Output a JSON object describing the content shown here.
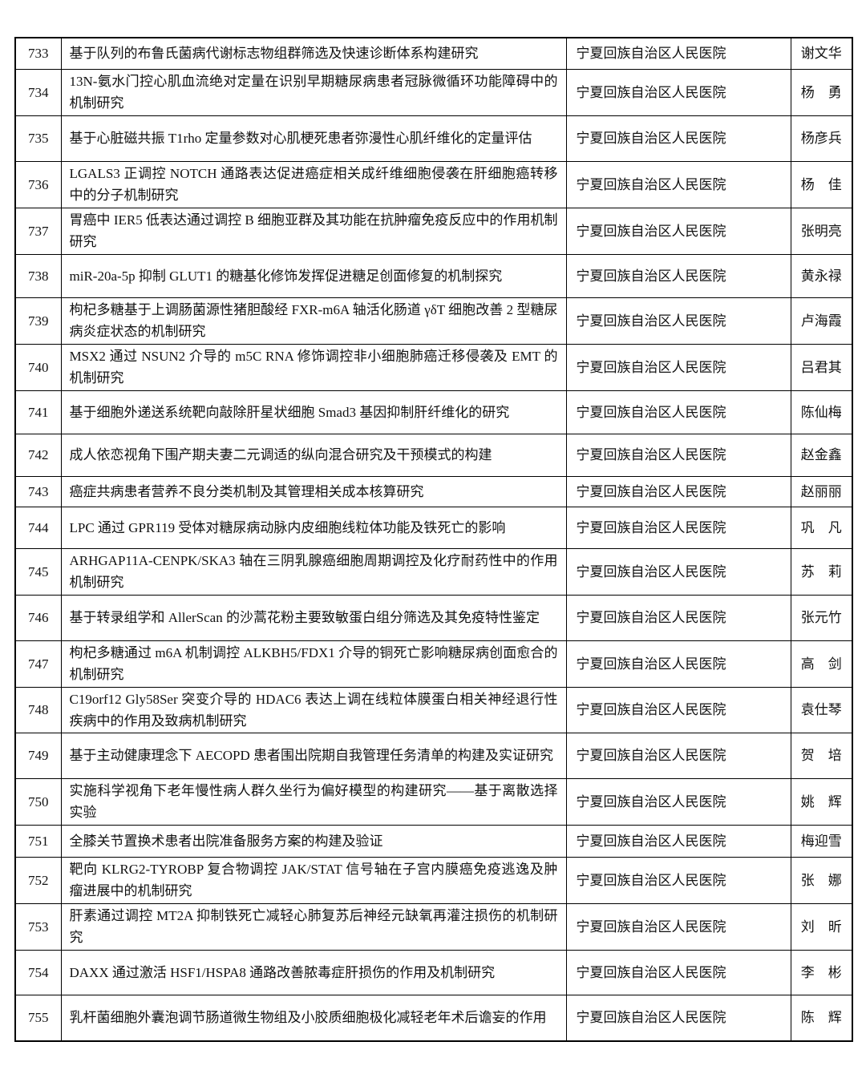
{
  "table": {
    "rows": [
      [
        "733",
        "基于队列的布鲁氏菌病代谢标志物组群筛选及快速诊断体系构建研究",
        "宁夏回族自治区人民医院",
        "谢文华"
      ],
      [
        "734",
        "13N-氨水门控心肌血流绝对定量在识别早期糖尿病患者冠脉微循环功能障碍中的机制研究",
        "宁夏回族自治区人民医院",
        "杨　勇"
      ],
      [
        "735",
        "基于心脏磁共振 T1rho 定量参数对心肌梗死患者弥漫性心肌纤维化的定量评估",
        "宁夏回族自治区人民医院",
        "杨彦兵"
      ],
      [
        "736",
        "LGALS3 正调控 NOTCH 通路表达促进癌症相关成纤维细胞侵袭在肝细胞癌转移中的分子机制研究",
        "宁夏回族自治区人民医院",
        "杨　佳"
      ],
      [
        "737",
        "胃癌中 IER5 低表达通过调控 B 细胞亚群及其功能在抗肿瘤免疫反应中的作用机制研究",
        "宁夏回族自治区人民医院",
        "张明亮"
      ],
      [
        "738",
        "miR-20a-5p 抑制 GLUT1 的糖基化修饰发挥促进糖足创面修复的机制探究",
        "宁夏回族自治区人民医院",
        "黄永禄"
      ],
      [
        "739",
        "枸杞多糖基于上调肠菌源性猪胆酸经 FXR-m6A 轴活化肠道 γδT 细胞改善 2 型糖尿病炎症状态的机制研究",
        "宁夏回族自治区人民医院",
        "卢海霞"
      ],
      [
        "740",
        "MSX2 通过 NSUN2 介导的 m5C RNA 修饰调控非小细胞肺癌迁移侵袭及 EMT 的机制研究",
        "宁夏回族自治区人民医院",
        "吕君其"
      ],
      [
        "741",
        "基于细胞外递送系统靶向敲除肝星状细胞 Smad3 基因抑制肝纤维化的研究",
        "宁夏回族自治区人民医院",
        "陈仙梅"
      ],
      [
        "742",
        "成人依恋视角下围产期夫妻二元调适的纵向混合研究及干预模式的构建",
        "宁夏回族自治区人民医院",
        "赵金鑫"
      ],
      [
        "743",
        "癌症共病患者营养不良分类机制及其管理相关成本核算研究",
        "宁夏回族自治区人民医院",
        "赵丽丽"
      ],
      [
        "744",
        "LPC 通过 GPR119 受体对糖尿病动脉内皮细胞线粒体功能及铁死亡的影响",
        "宁夏回族自治区人民医院",
        "巩　凡"
      ],
      [
        "745",
        "ARHGAP11A-CENPK/SKA3 轴在三阴乳腺癌细胞周期调控及化疗耐药性中的作用机制研究",
        "宁夏回族自治区人民医院",
        "苏　莉"
      ],
      [
        "746",
        "基于转录组学和 AllerScan 的沙蒿花粉主要致敏蛋白组分筛选及其免疫特性鉴定",
        "宁夏回族自治区人民医院",
        "张元竹"
      ],
      [
        "747",
        "枸杞多糖通过 m6A 机制调控 ALKBH5/FDX1 介导的铜死亡影响糖尿病创面愈合的机制研究",
        "宁夏回族自治区人民医院",
        "高　剑"
      ],
      [
        "748",
        "C19orf12 Gly58Ser 突变介导的 HDAC6 表达上调在线粒体膜蛋白相关神经退行性疾病中的作用及致病机制研究",
        "宁夏回族自治区人民医院",
        "袁仕琴"
      ],
      [
        "749",
        "基于主动健康理念下 AECOPD 患者围出院期自我管理任务清单的构建及实证研究",
        "宁夏回族自治区人民医院",
        "贺　培"
      ],
      [
        "750",
        "实施科学视角下老年慢性病人群久坐行为偏好模型的构建研究——基于离散选择实验",
        "宁夏回族自治区人民医院",
        "姚　辉"
      ],
      [
        "751",
        "全膝关节置换术患者出院准备服务方案的构建及验证",
        "宁夏回族自治区人民医院",
        "梅迎雪"
      ],
      [
        "752",
        "靶向 KLRG2-TYROBP 复合物调控 JAK/STAT 信号轴在子宫内膜癌免疫逃逸及肿瘤进展中的机制研究",
        "宁夏回族自治区人民医院",
        "张　娜"
      ],
      [
        "753",
        "肝素通过调控 MT2A 抑制铁死亡减轻心肺复苏后神经元缺氧再灌注损伤的机制研究",
        "宁夏回族自治区人民医院",
        "刘　昕"
      ],
      [
        "754",
        "DAXX 通过激活 HSF1/HSPA8 通路改善脓毒症肝损伤的作用及机制研究",
        "宁夏回族自治区人民医院",
        "李　彬"
      ],
      [
        "755",
        "乳杆菌细胞外囊泡调节肠道微生物组及小胶质细胞极化减轻老年术后谵妄的作用",
        "宁夏回族自治区人民医院",
        "陈　辉"
      ]
    ]
  }
}
